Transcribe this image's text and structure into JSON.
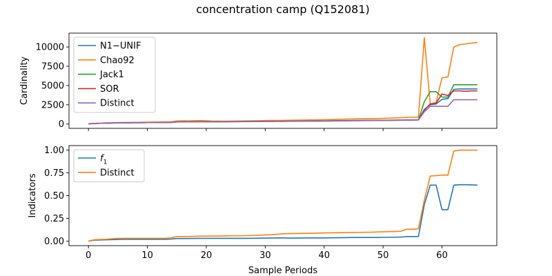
{
  "figure": {
    "title": "concentration camp (Q152081)",
    "xlabel": "Sample Periods"
  },
  "chart_data": [
    {
      "type": "line",
      "ylabel": "Cardinality",
      "xlim": [
        -3.3,
        69.3
      ],
      "ylim": [
        -560,
        11800
      ],
      "xticks": [
        0,
        10,
        20,
        30,
        40,
        50,
        60
      ],
      "yticks": [
        0,
        2500,
        5000,
        7500,
        10000
      ],
      "ytick_labels": [
        "0",
        "2500",
        "5000",
        "7500",
        "10000"
      ],
      "xtick_labels_visible": false,
      "legend": "upper left",
      "grid": false,
      "x": [
        0,
        1,
        2,
        3,
        4,
        5,
        6,
        7,
        8,
        9,
        10,
        11,
        12,
        13,
        14,
        15,
        16,
        17,
        18,
        19,
        20,
        21,
        22,
        23,
        24,
        25,
        26,
        27,
        28,
        29,
        30,
        31,
        32,
        33,
        34,
        35,
        36,
        37,
        38,
        39,
        40,
        41,
        42,
        43,
        44,
        45,
        46,
        47,
        48,
        49,
        50,
        51,
        52,
        53,
        54,
        55,
        56,
        57,
        58,
        59,
        60,
        61,
        62,
        63,
        64,
        65,
        66
      ],
      "series": [
        {
          "name": "N1−UNIF",
          "color": "#1f77b4",
          "values": [
            30,
            60,
            90,
            110,
            130,
            150,
            160,
            165,
            170,
            175,
            180,
            185,
            190,
            195,
            200,
            280,
            290,
            295,
            300,
            310,
            320,
            310,
            305,
            310,
            315,
            320,
            325,
            330,
            335,
            340,
            350,
            355,
            360,
            365,
            370,
            375,
            380,
            385,
            390,
            395,
            400,
            410,
            420,
            430,
            440,
            450,
            455,
            460,
            465,
            470,
            480,
            490,
            500,
            510,
            520,
            530,
            540,
            1900,
            2500,
            2600,
            3200,
            3300,
            4500,
            4550,
            4550,
            4550,
            4550
          ]
        },
        {
          "name": "Chao92",
          "color": "#ff7f0e",
          "values": [
            40,
            80,
            120,
            150,
            170,
            190,
            200,
            210,
            220,
            230,
            240,
            250,
            260,
            270,
            280,
            400,
            420,
            410,
            430,
            450,
            420,
            390,
            380,
            370,
            380,
            390,
            400,
            410,
            420,
            430,
            450,
            460,
            470,
            480,
            490,
            500,
            510,
            520,
            530,
            540,
            560,
            580,
            600,
            620,
            640,
            660,
            680,
            690,
            700,
            710,
            730,
            760,
            790,
            820,
            850,
            880,
            900,
            11200,
            2600,
            2800,
            6000,
            6100,
            10000,
            10300,
            10400,
            10500,
            10600
          ]
        },
        {
          "name": "Jack1",
          "color": "#2ca02c",
          "values": [
            30,
            60,
            90,
            110,
            130,
            150,
            160,
            165,
            170,
            175,
            180,
            185,
            190,
            195,
            200,
            290,
            300,
            305,
            310,
            320,
            330,
            320,
            315,
            320,
            325,
            330,
            335,
            340,
            345,
            350,
            360,
            365,
            370,
            375,
            380,
            385,
            390,
            395,
            400,
            405,
            410,
            420,
            430,
            440,
            450,
            460,
            465,
            470,
            475,
            480,
            490,
            500,
            510,
            520,
            530,
            540,
            550,
            2900,
            4200,
            4200,
            3500,
            3500,
            5100,
            5100,
            5100,
            5100,
            5100
          ]
        },
        {
          "name": "SOR",
          "color": "#d62728",
          "values": [
            30,
            60,
            90,
            110,
            130,
            150,
            160,
            165,
            170,
            175,
            180,
            185,
            190,
            195,
            200,
            270,
            280,
            285,
            290,
            300,
            310,
            300,
            295,
            300,
            305,
            310,
            315,
            320,
            325,
            330,
            340,
            345,
            350,
            355,
            360,
            365,
            370,
            375,
            380,
            385,
            390,
            400,
            410,
            420,
            430,
            440,
            445,
            450,
            455,
            460,
            470,
            480,
            490,
            500,
            510,
            520,
            530,
            1800,
            2600,
            2700,
            3900,
            3700,
            4300,
            4300,
            4250,
            4300,
            4300
          ]
        },
        {
          "name": "Distinct",
          "color": "#9467bd",
          "values": [
            30,
            60,
            90,
            110,
            130,
            150,
            160,
            165,
            170,
            175,
            180,
            185,
            190,
            195,
            200,
            260,
            270,
            275,
            280,
            290,
            300,
            290,
            285,
            290,
            295,
            300,
            305,
            310,
            315,
            320,
            330,
            335,
            340,
            345,
            350,
            355,
            360,
            365,
            370,
            375,
            380,
            390,
            400,
            410,
            420,
            430,
            435,
            440,
            445,
            450,
            460,
            470,
            480,
            490,
            500,
            510,
            520,
            1600,
            2300,
            2300,
            2300,
            2300,
            3150,
            3150,
            3150,
            3150,
            3150
          ]
        }
      ]
    },
    {
      "type": "line",
      "ylabel": "Indicators",
      "xlim": [
        -3.3,
        69.3
      ],
      "ylim": [
        -0.05,
        1.05
      ],
      "xticks": [
        0,
        10,
        20,
        30,
        40,
        50,
        60
      ],
      "xtick_labels": [
        "0",
        "10",
        "20",
        "30",
        "40",
        "50",
        "60"
      ],
      "yticks": [
        0,
        0.25,
        0.5,
        0.75,
        1.0
      ],
      "ytick_labels": [
        "0.00",
        "0.25",
        "0.50",
        "0.75",
        "1.00"
      ],
      "legend": "upper left",
      "grid": false,
      "x": [
        0,
        1,
        2,
        3,
        4,
        5,
        6,
        7,
        8,
        9,
        10,
        11,
        12,
        13,
        14,
        15,
        16,
        17,
        18,
        19,
        20,
        21,
        22,
        23,
        24,
        25,
        26,
        27,
        28,
        29,
        30,
        31,
        32,
        33,
        34,
        35,
        36,
        37,
        38,
        39,
        40,
        41,
        42,
        43,
        44,
        45,
        46,
        47,
        48,
        49,
        50,
        51,
        52,
        53,
        54,
        55,
        56,
        57,
        58,
        59,
        60,
        61,
        62,
        63,
        64,
        65,
        66
      ],
      "series": [
        {
          "name": "f1",
          "color": "#1f77b4",
          "values": [
            0.0,
            0.01,
            0.012,
            0.014,
            0.016,
            0.018,
            0.02,
            0.02,
            0.02,
            0.02,
            0.02,
            0.02,
            0.02,
            0.02,
            0.022,
            0.028,
            0.028,
            0.028,
            0.029,
            0.03,
            0.03,
            0.03,
            0.03,
            0.03,
            0.03,
            0.03,
            0.03,
            0.03,
            0.031,
            0.032,
            0.033,
            0.034,
            0.035,
            0.036,
            0.033,
            0.033,
            0.034,
            0.035,
            0.035,
            0.035,
            0.035,
            0.036,
            0.037,
            0.038,
            0.039,
            0.04,
            0.04,
            0.04,
            0.04,
            0.04,
            0.041,
            0.042,
            0.043,
            0.044,
            0.05,
            0.05,
            0.05,
            0.4,
            0.615,
            0.615,
            0.345,
            0.345,
            0.615,
            0.62,
            0.62,
            0.618,
            0.615
          ]
        },
        {
          "name": "Distinct",
          "color": "#ff7f0e",
          "values": [
            0.0,
            0.015,
            0.018,
            0.02,
            0.025,
            0.03,
            0.03,
            0.03,
            0.03,
            0.03,
            0.03,
            0.03,
            0.03,
            0.03,
            0.035,
            0.05,
            0.05,
            0.05,
            0.052,
            0.055,
            0.055,
            0.056,
            0.056,
            0.057,
            0.058,
            0.058,
            0.059,
            0.06,
            0.062,
            0.064,
            0.068,
            0.07,
            0.075,
            0.08,
            0.082,
            0.083,
            0.084,
            0.085,
            0.086,
            0.088,
            0.09,
            0.091,
            0.092,
            0.093,
            0.094,
            0.095,
            0.096,
            0.097,
            0.098,
            0.1,
            0.102,
            0.104,
            0.106,
            0.108,
            0.13,
            0.13,
            0.135,
            0.45,
            0.715,
            0.72,
            0.725,
            0.725,
            0.99,
            1.0,
            1.0,
            1.0,
            1.0
          ]
        }
      ]
    }
  ]
}
